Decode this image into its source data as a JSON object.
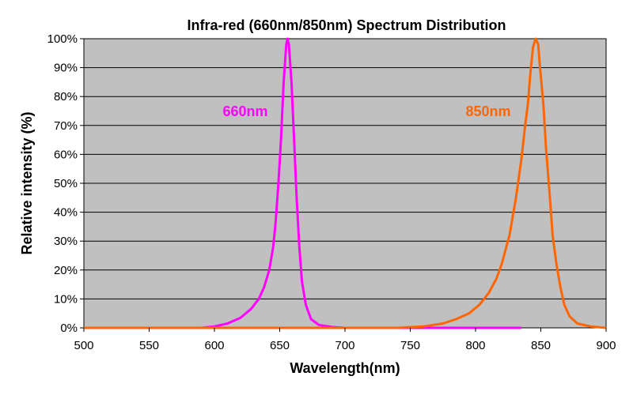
{
  "chart_data": {
    "type": "line",
    "title": "Infra-red (660nm/850nm) Spectrum Distribution",
    "xlabel": "Wavelength(nm)",
    "ylabel": "Relative intensity (%)",
    "xlim": [
      500,
      900
    ],
    "ylim": [
      0,
      100
    ],
    "x_ticks": [
      "500",
      "550",
      "600",
      "650",
      "700",
      "750",
      "800",
      "850",
      "900"
    ],
    "y_ticks": [
      "0%",
      "10%",
      "20%",
      "30%",
      "40%",
      "50%",
      "60%",
      "70%",
      "80%",
      "90%",
      "100%"
    ],
    "grid": "horizontal",
    "plot_background": "#c0c0c0",
    "series": [
      {
        "name": "660nm",
        "color": "#ff00ff",
        "points": [
          [
            500,
            0
          ],
          [
            590,
            0
          ],
          [
            600,
            0.5
          ],
          [
            610,
            1.5
          ],
          [
            620,
            3.5
          ],
          [
            628,
            6.5
          ],
          [
            634,
            10
          ],
          [
            638,
            14
          ],
          [
            642,
            20
          ],
          [
            645,
            28
          ],
          [
            647,
            37
          ],
          [
            649,
            50
          ],
          [
            651,
            65
          ],
          [
            653,
            85
          ],
          [
            655,
            98
          ],
          [
            656,
            100
          ],
          [
            657,
            98
          ],
          [
            659,
            85
          ],
          [
            661,
            65
          ],
          [
            663,
            45
          ],
          [
            665,
            28
          ],
          [
            667,
            16
          ],
          [
            670,
            8
          ],
          [
            674,
            3
          ],
          [
            680,
            1
          ],
          [
            690,
            0.3
          ],
          [
            700,
            0
          ],
          [
            835,
            0
          ]
        ]
      },
      {
        "name": "850nm",
        "color": "#ff6600",
        "points": [
          [
            500,
            0
          ],
          [
            740,
            0
          ],
          [
            760,
            0.5
          ],
          [
            775,
            1.5
          ],
          [
            785,
            3
          ],
          [
            795,
            5
          ],
          [
            803,
            8
          ],
          [
            810,
            12
          ],
          [
            816,
            17
          ],
          [
            820,
            22
          ],
          [
            826,
            32
          ],
          [
            831,
            45
          ],
          [
            835,
            58
          ],
          [
            838,
            70
          ],
          [
            840,
            77
          ],
          [
            842,
            88
          ],
          [
            844,
            97
          ],
          [
            846,
            100
          ],
          [
            848,
            98
          ],
          [
            849,
            92
          ],
          [
            852,
            77
          ],
          [
            854,
            62
          ],
          [
            857,
            45
          ],
          [
            859,
            32
          ],
          [
            862,
            22
          ],
          [
            865,
            14
          ],
          [
            868,
            8
          ],
          [
            872,
            4
          ],
          [
            878,
            1.5
          ],
          [
            888,
            0.5
          ],
          [
            900,
            0
          ]
        ]
      }
    ]
  }
}
